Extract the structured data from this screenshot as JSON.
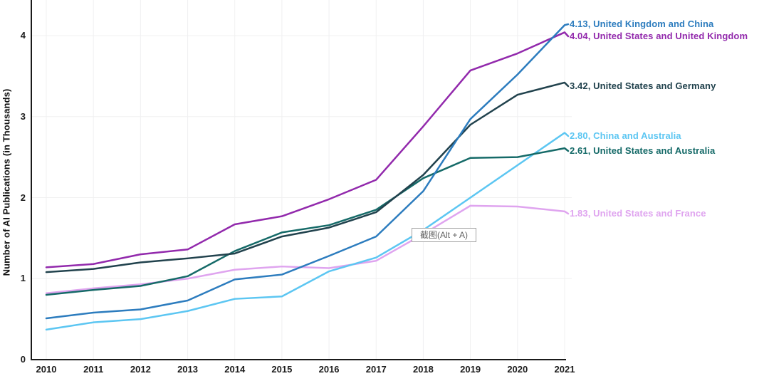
{
  "chart_data": {
    "type": "line",
    "title": "",
    "xlabel": "",
    "ylabel": "Number of AI Publications (in Thousands)",
    "x": [
      2010,
      2011,
      2012,
      2013,
      2014,
      2015,
      2016,
      2017,
      2018,
      2019,
      2020,
      2021
    ],
    "yticks": [
      0,
      1,
      2,
      3,
      4
    ],
    "ylim": [
      0,
      4.4
    ],
    "grid": true,
    "legend_position": "right-of-line-ends",
    "series": [
      {
        "name": "United Kingdom and China",
        "label": "4.13, United Kingdom and China",
        "final_value": 4.13,
        "color": "#2c7cbe",
        "values": [
          0.51,
          0.58,
          0.62,
          0.73,
          0.99,
          1.05,
          1.28,
          1.52,
          2.08,
          2.97,
          3.52,
          4.13
        ]
      },
      {
        "name": "United States and United Kingdom",
        "label": "4.04, United States and United Kingdom",
        "final_value": 4.04,
        "color": "#9229ac",
        "values": [
          1.14,
          1.18,
          1.3,
          1.36,
          1.67,
          1.77,
          1.98,
          2.22,
          2.88,
          3.57,
          3.78,
          4.04
        ]
      },
      {
        "name": "United States and Germany",
        "label": "3.42, United States and Germany",
        "final_value": 3.42,
        "color": "#21424d",
        "values": [
          1.08,
          1.12,
          1.2,
          1.25,
          1.31,
          1.52,
          1.63,
          1.82,
          2.28,
          2.9,
          3.27,
          3.42
        ]
      },
      {
        "name": "China and Australia",
        "label": "2.80, China and Australia",
        "final_value": 2.8,
        "color": "#5cc6f2",
        "values": [
          0.37,
          0.46,
          0.5,
          0.6,
          0.75,
          0.78,
          1.09,
          1.26,
          1.6,
          2.0,
          2.4,
          2.8
        ]
      },
      {
        "name": "United States and Australia",
        "label": "2.61, United States and Australia",
        "final_value": 2.61,
        "color": "#156a68",
        "values": [
          0.8,
          0.86,
          0.91,
          1.03,
          1.34,
          1.57,
          1.66,
          1.85,
          2.24,
          2.49,
          2.5,
          2.61
        ]
      },
      {
        "name": "United States and France",
        "label": "1.83, United States and France",
        "final_value": 1.83,
        "color": "#dfa4ef",
        "values": [
          0.82,
          0.88,
          0.93,
          1.0,
          1.11,
          1.15,
          1.13,
          1.22,
          1.55,
          1.9,
          1.89,
          1.83
        ]
      }
    ]
  },
  "overlay": {
    "screenshot_tooltip": "截图(Alt + A)"
  }
}
